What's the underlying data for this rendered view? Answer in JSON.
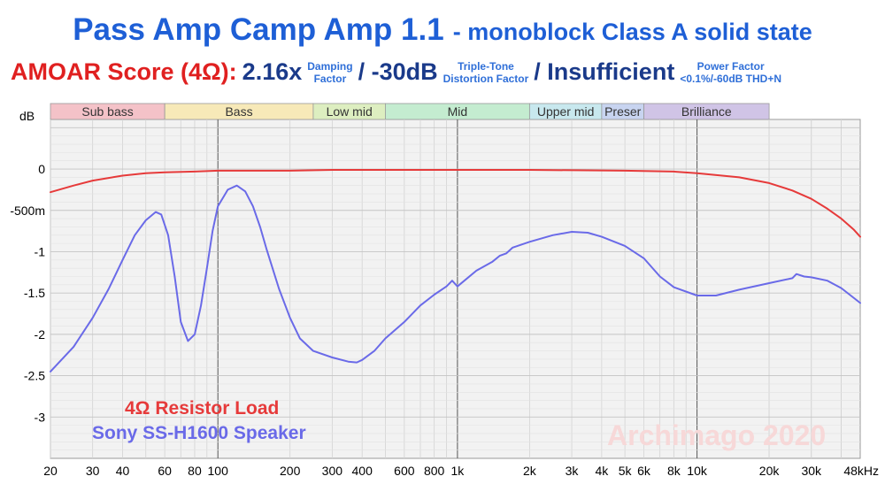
{
  "header": {
    "title": "Pass Amp Camp Amp 1.1",
    "subtitle": "- monoblock Class A solid state"
  },
  "score": {
    "label": "AMOAR Score (4Ω):",
    "damping_value": "2.16x",
    "damping_caption_1": "Damping",
    "damping_caption_2": "Factor",
    "ttd_value": "/ -30dB",
    "ttd_caption_1": "Triple-Tone",
    "ttd_caption_2": "Distortion Factor",
    "power_value": "/ Insufficient",
    "power_caption_1": "Power Factor",
    "power_caption_2": "<0.1%/-60dB THD+N"
  },
  "colors": {
    "resistor": "#e63a3a",
    "speaker": "#6a6ae8",
    "title": "#1e5fd6",
    "plot_bg": "#f2f2f2",
    "grid": "#d3d3d3",
    "major_grid": "#555555"
  },
  "chart_data": {
    "type": "line",
    "x_scale": "log",
    "xlim": [
      20,
      48000
    ],
    "ylim": [
      -3.5,
      0.6
    ],
    "ylabel": "dB",
    "y_ticks": [
      {
        "value": 0,
        "label": "0"
      },
      {
        "value": -0.5,
        "label": "-500m"
      },
      {
        "value": -1,
        "label": "-1"
      },
      {
        "value": -1.5,
        "label": "-1.5"
      },
      {
        "value": -2,
        "label": "-2"
      },
      {
        "value": -2.5,
        "label": "-2.5"
      },
      {
        "value": -3,
        "label": "-3"
      }
    ],
    "x_ticks": [
      {
        "value": 20,
        "label": "20"
      },
      {
        "value": 30,
        "label": "30"
      },
      {
        "value": 40,
        "label": "40"
      },
      {
        "value": 60,
        "label": "60"
      },
      {
        "value": 80,
        "label": "80"
      },
      {
        "value": 100,
        "label": "100"
      },
      {
        "value": 200,
        "label": "200"
      },
      {
        "value": 300,
        "label": "300"
      },
      {
        "value": 400,
        "label": "400"
      },
      {
        "value": 600,
        "label": "600"
      },
      {
        "value": 800,
        "label": "800"
      },
      {
        "value": 1000,
        "label": "1k"
      },
      {
        "value": 2000,
        "label": "2k"
      },
      {
        "value": 3000,
        "label": "3k"
      },
      {
        "value": 4000,
        "label": "4k"
      },
      {
        "value": 5000,
        "label": "5k"
      },
      {
        "value": 6000,
        "label": "6k"
      },
      {
        "value": 8000,
        "label": "8k"
      },
      {
        "value": 10000,
        "label": "10k"
      },
      {
        "value": 20000,
        "label": "20k"
      },
      {
        "value": 30000,
        "label": "30k"
      },
      {
        "value": 48000,
        "label": "48kHz"
      }
    ],
    "bands": [
      {
        "name": "Sub bass",
        "from": 20,
        "to": 60,
        "color": "#f4c2c8"
      },
      {
        "name": "Bass",
        "from": 60,
        "to": 250,
        "color": "#f7e9b8"
      },
      {
        "name": "Low mid",
        "from": 250,
        "to": 500,
        "color": "#ddeec0"
      },
      {
        "name": "Mid",
        "from": 500,
        "to": 2000,
        "color": "#c4ecd0"
      },
      {
        "name": "Upper mid",
        "from": 2000,
        "to": 4000,
        "color": "#c8e8ee"
      },
      {
        "name": "Preser",
        "from": 4000,
        "to": 6000,
        "color": "#c8d4f0"
      },
      {
        "name": "Brilliance",
        "from": 6000,
        "to": 20000,
        "color": "#d0c4e6"
      }
    ],
    "series": [
      {
        "name": "4Ω Resistor Load",
        "x": [
          20,
          25,
          30,
          40,
          50,
          60,
          80,
          100,
          150,
          200,
          300,
          500,
          1000,
          2000,
          5000,
          8000,
          10000,
          15000,
          20000,
          25000,
          30000,
          35000,
          40000,
          45000,
          48000
        ],
        "y": [
          -0.28,
          -0.2,
          -0.14,
          -0.08,
          -0.05,
          -0.04,
          -0.03,
          -0.02,
          -0.02,
          -0.02,
          -0.01,
          -0.01,
          -0.01,
          -0.01,
          -0.02,
          -0.03,
          -0.05,
          -0.1,
          -0.17,
          -0.26,
          -0.36,
          -0.48,
          -0.6,
          -0.73,
          -0.82
        ]
      },
      {
        "name": "Sony SS-H1600 Speaker",
        "x": [
          20,
          25,
          30,
          35,
          40,
          45,
          50,
          55,
          58,
          62,
          66,
          70,
          75,
          80,
          85,
          90,
          95,
          100,
          110,
          120,
          130,
          140,
          150,
          160,
          180,
          200,
          220,
          250,
          300,
          350,
          380,
          400,
          450,
          500,
          600,
          700,
          800,
          900,
          950,
          1000,
          1200,
          1400,
          1500,
          1600,
          1700,
          2000,
          2500,
          3000,
          3500,
          4000,
          5000,
          6000,
          7000,
          8000,
          10000,
          12000,
          15000,
          20000,
          25000,
          26000,
          28000,
          30000,
          35000,
          40000,
          48000
        ],
        "y": [
          -2.45,
          -2.15,
          -1.8,
          -1.45,
          -1.1,
          -0.8,
          -0.62,
          -0.52,
          -0.55,
          -0.8,
          -1.3,
          -1.85,
          -2.08,
          -2.0,
          -1.65,
          -1.2,
          -0.75,
          -0.45,
          -0.25,
          -0.2,
          -0.27,
          -0.45,
          -0.7,
          -0.98,
          -1.45,
          -1.8,
          -2.05,
          -2.2,
          -2.28,
          -2.33,
          -2.34,
          -2.31,
          -2.2,
          -2.05,
          -1.85,
          -1.65,
          -1.52,
          -1.42,
          -1.35,
          -1.42,
          -1.23,
          -1.12,
          -1.05,
          -1.02,
          -0.95,
          -0.88,
          -0.8,
          -0.76,
          -0.77,
          -0.82,
          -0.93,
          -1.08,
          -1.3,
          -1.43,
          -1.53,
          -1.53,
          -1.46,
          -1.38,
          -1.32,
          -1.27,
          -1.3,
          -1.31,
          -1.35,
          -1.44,
          -1.62
        ]
      }
    ]
  },
  "legend": {
    "resistor_label": "4Ω Resistor Load",
    "speaker_label": "Sony SS-H1600 Speaker"
  },
  "watermark": "Archimago 2020"
}
